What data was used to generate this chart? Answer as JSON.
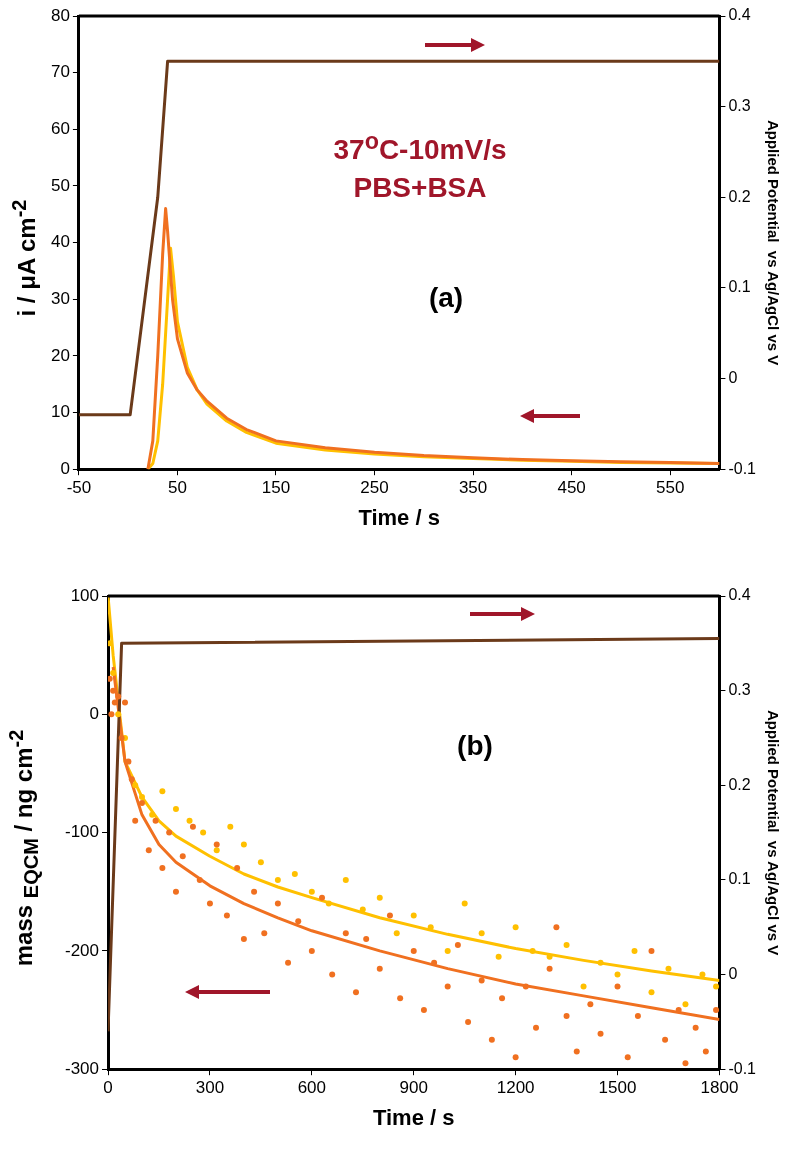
{
  "chart_data": [
    {
      "type": "line",
      "xlabel": "Time / s",
      "ylabel": "i / μA cm$^{-2}$",
      "y2label": "Applied Potential  vs Ag/AgCl vs V",
      "annotations": [
        "37$^{o}$C-10mV/s",
        "PBS+BSA",
        "(a)"
      ],
      "xlim": [
        -50,
        600
      ],
      "xticks": [
        -50,
        50,
        150,
        250,
        350,
        450,
        550
      ],
      "ylim": [
        0,
        80
      ],
      "yticks": [
        0,
        10,
        20,
        30,
        40,
        50,
        60,
        70,
        80
      ],
      "y2lim": [
        -0.1,
        0.4
      ],
      "y2ticks": [
        -0.1,
        0,
        0.1,
        0.2,
        0.3,
        0.4
      ],
      "marker": "none",
      "line_style": "solid",
      "series": [
        {
          "type": "line",
          "color": "#6b3a1a",
          "axis": "y2",
          "x": [
            -50,
            2,
            30,
            40,
            600
          ],
          "values": [
            -0.04,
            -0.04,
            0.2,
            0.35,
            0.35
          ]
        },
        {
          "type": "line",
          "color": "#f07020",
          "x": [
            20,
            25,
            30,
            35,
            38,
            40,
            45,
            50,
            60,
            70,
            80,
            100,
            120,
            150,
            200,
            250,
            300,
            350,
            400,
            450,
            500,
            550,
            600
          ],
          "values": [
            0,
            5,
            20,
            38,
            46,
            42,
            30,
            23,
            17,
            14,
            12,
            9,
            7,
            5,
            3.8,
            3,
            2.4,
            2,
            1.7,
            1.5,
            1.3,
            1.2,
            1
          ]
        },
        {
          "type": "line",
          "color": "#ffc000",
          "x": [
            20,
            25,
            30,
            35,
            40,
            43,
            46,
            50,
            60,
            70,
            80,
            100,
            120,
            150,
            200,
            250,
            300,
            350,
            400,
            450,
            500,
            550,
            600
          ],
          "values": [
            0,
            1,
            5,
            15,
            30,
            39,
            34,
            26,
            18,
            14,
            11.5,
            8.5,
            6.5,
            4.6,
            3.4,
            2.7,
            2.2,
            1.9,
            1.6,
            1.4,
            1.2,
            1.1,
            1
          ]
        }
      ]
    },
    {
      "type": "line",
      "xlabel": "Time / s",
      "ylabel": "mass $_{EQCM}$ / ng cm$^{-2}$",
      "y2label": "Applied Potential  vs Ag/AgCl vs V",
      "annotations": [
        "(b)"
      ],
      "xlim": [
        0,
        1800
      ],
      "xticks": [
        0,
        300,
        600,
        900,
        1200,
        1500,
        1800
      ],
      "ylim": [
        -300,
        100
      ],
      "yticks": [
        -300,
        -200,
        -100,
        0,
        100
      ],
      "y2lim": [
        -0.1,
        0.4
      ],
      "y2ticks": [
        -0.1,
        0,
        0.1,
        0.2,
        0.3,
        0.4
      ],
      "marker": "none",
      "line_style": "solid",
      "series": [
        {
          "type": "scatter",
          "marker": "circle",
          "color": "#f07020",
          "x": [
            5,
            10,
            15,
            20,
            30,
            40,
            50,
            60,
            70,
            80,
            100,
            120,
            140,
            160,
            180,
            200,
            220,
            250,
            270,
            300,
            320,
            350,
            380,
            400,
            430,
            460,
            500,
            530,
            560,
            600,
            630,
            660,
            700,
            730,
            760,
            800,
            830,
            860,
            900,
            930,
            960,
            1000,
            1030,
            1060,
            1100,
            1130,
            1160,
            1200,
            1230,
            1260,
            1300,
            1320,
            1350,
            1380,
            1420,
            1450,
            1500,
            1530,
            1560,
            1600,
            1640,
            1680,
            1700,
            1730,
            1760,
            1790
          ],
          "values": [
            30,
            0,
            20,
            10,
            15,
            -20,
            10,
            -40,
            -55,
            -90,
            -75,
            -115,
            -90,
            -130,
            -100,
            -150,
            -120,
            -95,
            -140,
            -160,
            -110,
            -170,
            -130,
            -190,
            -150,
            -185,
            -160,
            -210,
            -175,
            -200,
            -155,
            -220,
            -185,
            -235,
            -190,
            -215,
            -170,
            -240,
            -200,
            -250,
            -210,
            -230,
            -195,
            -260,
            -225,
            -275,
            -240,
            -290,
            -230,
            -265,
            -215,
            -180,
            -255,
            -285,
            -245,
            -270,
            -230,
            -290,
            -255,
            -200,
            -275,
            -250,
            -295,
            -265,
            -285,
            -250
          ]
        },
        {
          "type": "scatter",
          "marker": "circle",
          "color": "#ffc000",
          "x": [
            5,
            15,
            30,
            50,
            80,
            100,
            130,
            160,
            200,
            240,
            280,
            320,
            360,
            400,
            450,
            500,
            550,
            600,
            650,
            700,
            750,
            800,
            850,
            900,
            950,
            1000,
            1050,
            1100,
            1150,
            1200,
            1250,
            1300,
            1350,
            1400,
            1450,
            1500,
            1550,
            1600,
            1650,
            1700,
            1750,
            1790
          ],
          "values": [
            60,
            35,
            0,
            -20,
            -60,
            -70,
            -85,
            -65,
            -80,
            -90,
            -100,
            -115,
            -95,
            -110,
            -125,
            -140,
            -135,
            -150,
            -160,
            -140,
            -165,
            -155,
            -185,
            -170,
            -180,
            -200,
            -160,
            -185,
            -205,
            -180,
            -200,
            -205,
            -195,
            -230,
            -210,
            -220,
            -200,
            -235,
            -215,
            -245,
            -220,
            -230
          ]
        },
        {
          "type": "line",
          "color": "#6b3a1a",
          "axis": "y2",
          "x": [
            0,
            40,
            1800
          ],
          "values": [
            -0.06,
            0.35,
            0.355
          ]
        },
        {
          "type": "line",
          "color": "#f07020",
          "x": [
            15,
            50,
            100,
            150,
            200,
            300,
            400,
            500,
            600,
            800,
            1000,
            1200,
            1400,
            1600,
            1800
          ],
          "values": [
            40,
            -40,
            -85,
            -110,
            -125,
            -145,
            -160,
            -172,
            -183,
            -200,
            -215,
            -228,
            -238,
            -248,
            -258
          ]
        },
        {
          "type": "line",
          "color": "#ffc000",
          "x": [
            0,
            15,
            50,
            100,
            150,
            200,
            300,
            400,
            500,
            600,
            800,
            1000,
            1200,
            1400,
            1600,
            1800
          ],
          "values": [
            100,
            50,
            -40,
            -70,
            -90,
            -103,
            -120,
            -135,
            -146,
            -155,
            -172,
            -186,
            -198,
            -208,
            -217,
            -225
          ]
        }
      ]
    }
  ]
}
